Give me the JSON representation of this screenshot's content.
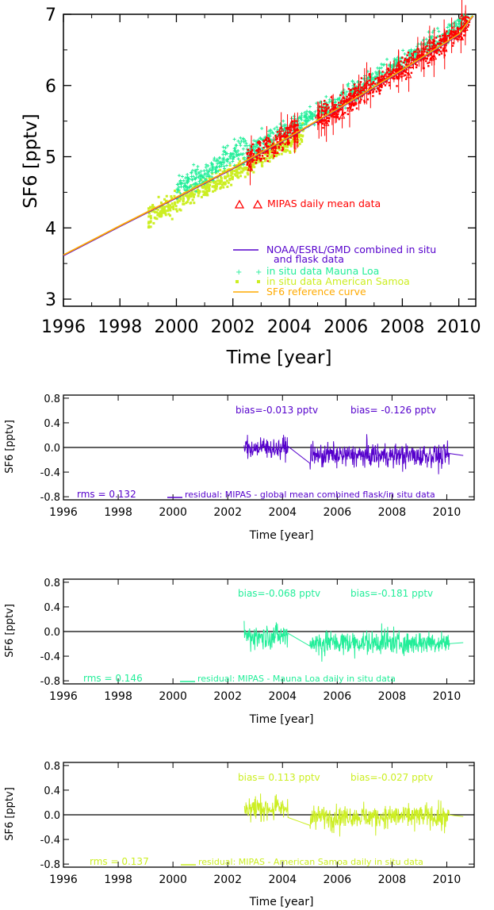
{
  "colors": {
    "mipas": "#ff0000",
    "noaa": "#5500cc",
    "mauna_loa": "#22ee99",
    "samoa": "#ccee22",
    "reference": "#ffaa00",
    "axis": "#000000"
  },
  "chart_data": [
    {
      "type": "scatter",
      "xlabel": "Time [year]",
      "ylabel": "SF6 [pptv]",
      "xlim": [
        1996,
        2010.6
      ],
      "ylim": [
        2.9,
        7.0
      ],
      "xticks": [
        "1996",
        "1998",
        "2000",
        "2002",
        "2004",
        "2006",
        "2008",
        "2010"
      ],
      "yticks": [
        "3",
        "4",
        "5",
        "6",
        "7"
      ],
      "annotation": "MIPAS daily mean data",
      "legend": [
        {
          "label": "NOAA/ESRL/GMD combined in situ",
          "label2": "and flask data",
          "marker": "line",
          "color_key": "noaa"
        },
        {
          "label": "in situ data Mauna Loa",
          "marker": "plus",
          "color_key": "mauna_loa"
        },
        {
          "label": "in situ data American Samoa",
          "marker": "square",
          "color_key": "samoa"
        },
        {
          "label": "SF6 reference curve",
          "marker": "line",
          "color_key": "reference"
        }
      ],
      "series": [
        {
          "name": "SF6 reference curve",
          "x": [
            1996.0,
            1998.0,
            2000.0,
            2002.0,
            2004.0,
            2006.0,
            2008.0,
            2010.0,
            2010.5
          ],
          "y": [
            3.62,
            4.03,
            4.43,
            4.84,
            5.28,
            5.74,
            6.22,
            6.72,
            6.98
          ]
        },
        {
          "name": "NOAA/ESRL/GMD combined in situ and flask data",
          "x": [
            1996.0,
            1998.0,
            2000.0,
            2002.0,
            2004.0,
            2006.0,
            2008.0,
            2010.0,
            2010.5
          ],
          "y": [
            3.61,
            4.02,
            4.42,
            4.83,
            5.27,
            5.73,
            6.21,
            6.71,
            6.97
          ]
        },
        {
          "name": "in situ data Mauna Loa",
          "x_range": [
            2000.0,
            2010.5
          ],
          "y_start": 4.55,
          "y_end": 7.0
        },
        {
          "name": "in situ data American Samoa",
          "x_range": [
            1999.0,
            2004.5
          ],
          "y_start": 4.2,
          "y_end": 5.3
        },
        {
          "name": "MIPAS daily mean data",
          "x_range": [
            2002.5,
            2010.4
          ],
          "y_start": 5.05,
          "y_end": 6.85
        }
      ]
    },
    {
      "type": "line",
      "xlabel": "Time [year]",
      "ylabel": "SF6 [pptv]",
      "xlim": [
        1996,
        2011
      ],
      "ylim": [
        -0.85,
        0.85
      ],
      "xticks": [
        "1996",
        "1998",
        "2000",
        "2002",
        "2004",
        "2006",
        "2008",
        "2010"
      ],
      "yticks": [
        "0.8",
        "0.4",
        "0.0",
        "-0.4",
        "-0.8"
      ],
      "color_key": "noaa",
      "bias_left": "bias=-0.013 pptv",
      "bias_right": "bias= -0.126 pptv",
      "rms": "rms = 0.132",
      "legend_label": "residual: MIPAS - global mean combined flask/in situ data",
      "segments": [
        {
          "x_range": [
            2002.6,
            2004.2
          ],
          "mean": -0.01,
          "amplitude": 0.18
        },
        {
          "x_range": [
            2005.0,
            2010.1
          ],
          "mean": -0.13,
          "amplitude": 0.2
        }
      ]
    },
    {
      "type": "line",
      "xlabel": "Time [year]",
      "ylabel": "SF6 [pptv]",
      "xlim": [
        1996,
        2011
      ],
      "ylim": [
        -0.85,
        0.85
      ],
      "xticks": [
        "1996",
        "1998",
        "2000",
        "2002",
        "2004",
        "2006",
        "2008",
        "2010"
      ],
      "yticks": [
        "0.8",
        "0.4",
        "0.0",
        "-0.4",
        "-0.8"
      ],
      "color_key": "mauna_loa",
      "bias_left": "bias=-0.068 pptv",
      "bias_right": "bias=-0.181 pptv",
      "rms": "rms = 0.146",
      "legend_label": "residual: MIPAS - Mauna Loa daily in situ data",
      "segments": [
        {
          "x_range": [
            2002.6,
            2004.2
          ],
          "mean": -0.07,
          "amplitude": 0.2
        },
        {
          "x_range": [
            2005.0,
            2010.1
          ],
          "mean": -0.18,
          "amplitude": 0.2
        }
      ]
    },
    {
      "type": "line",
      "xlabel": "Time [year]",
      "ylabel": "SF6 [pptv]",
      "xlim": [
        1996,
        2011
      ],
      "ylim": [
        -0.85,
        0.85
      ],
      "xticks": [
        "1996",
        "1998",
        "2000",
        "2002",
        "2004",
        "2006",
        "2008",
        "2010"
      ],
      "yticks": [
        "0.8",
        "0.4",
        "0.0",
        "-0.4",
        "-0.8"
      ],
      "color_key": "samoa",
      "bias_left": "bias= 0.113 pptv",
      "bias_right": "bias=-0.027 pptv",
      "rms": "rms = 0.137",
      "legend_label": "residual: MIPAS - American Samoa daily in situ data",
      "segments": [
        {
          "x_range": [
            2002.6,
            2004.2
          ],
          "mean": 0.11,
          "amplitude": 0.2
        },
        {
          "x_range": [
            2005.0,
            2010.1
          ],
          "mean": -0.03,
          "amplitude": 0.2
        }
      ]
    }
  ]
}
